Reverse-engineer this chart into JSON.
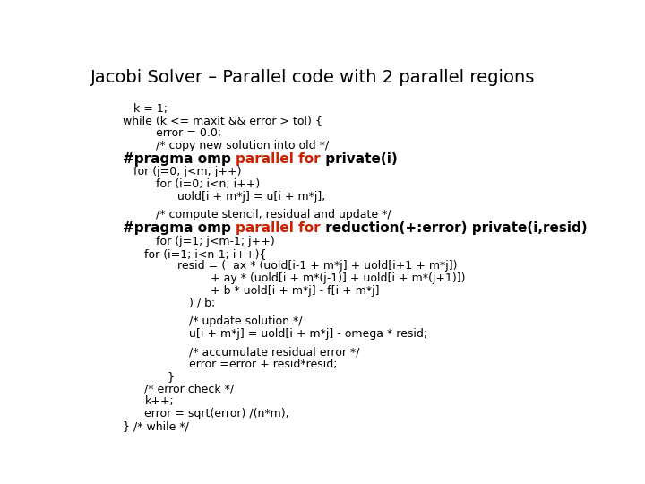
{
  "title": "Jacobi Solver – Parallel code with 2 parallel regions",
  "bg": "#ffffff",
  "title_fs": 14,
  "code_fs": 9,
  "pragma_fs": 11,
  "lines": [
    {
      "text": "k = 1;",
      "indent": 3,
      "type": "code"
    },
    {
      "text": "while (k <= maxit && error > tol) {",
      "indent": 2,
      "type": "code"
    },
    {
      "text": "error = 0.0;",
      "indent": 5,
      "type": "code"
    },
    {
      "text": "/* copy new solution into old */",
      "indent": 5,
      "type": "code"
    },
    {
      "text": "",
      "indent": 0,
      "type": "pragma1"
    },
    {
      "text": "for (j=0; j<m; j++)",
      "indent": 3,
      "type": "code"
    },
    {
      "text": "for (i=0; i<n; i++)",
      "indent": 5,
      "type": "code"
    },
    {
      "text": "uold[i + m*j] = u[i + m*j];",
      "indent": 7,
      "type": "code"
    },
    {
      "text": "",
      "indent": 0,
      "type": "blank"
    },
    {
      "text": "/* compute stencil, residual and update */",
      "indent": 5,
      "type": "code"
    },
    {
      "text": "",
      "indent": 0,
      "type": "pragma2"
    },
    {
      "text": "for (j=1; j<m-1; j++)",
      "indent": 5,
      "type": "code"
    },
    {
      "text": "for (i=1; i<n-1; i++){",
      "indent": 4,
      "type": "code"
    },
    {
      "text": "resid = (  ax * (uold[i-1 + m*j] + uold[i+1 + m*j])",
      "indent": 7,
      "type": "code"
    },
    {
      "text": "+ ay * (uold[i + m*(j-1)] + uold[i + m*(j+1)])",
      "indent": 10,
      "type": "code"
    },
    {
      "text": "+ b * uold[i + m*j] - f[i + m*j]",
      "indent": 10,
      "type": "code"
    },
    {
      "text": ") / b;",
      "indent": 8,
      "type": "code"
    },
    {
      "text": "",
      "indent": 0,
      "type": "blank"
    },
    {
      "text": "/* update solution */",
      "indent": 8,
      "type": "code"
    },
    {
      "text": "u[i + m*j] = uold[i + m*j] - omega * resid;",
      "indent": 8,
      "type": "code"
    },
    {
      "text": "",
      "indent": 0,
      "type": "blank"
    },
    {
      "text": "/* accumulate residual error */",
      "indent": 8,
      "type": "code"
    },
    {
      "text": "error =error + resid*resid;",
      "indent": 8,
      "type": "code"
    },
    {
      "text": "}",
      "indent": 6,
      "type": "code"
    },
    {
      "text": "/* error check */",
      "indent": 4,
      "type": "code"
    },
    {
      "text": "k++;",
      "indent": 4,
      "type": "code"
    },
    {
      "text": "error = sqrt(error) /(n*m);",
      "indent": 4,
      "type": "code"
    },
    {
      "text": "} /* while */",
      "indent": 2,
      "type": "code"
    }
  ],
  "pragma1_parts": [
    {
      "text": "#pragma omp ",
      "color": "#000000"
    },
    {
      "text": "parallel for",
      "color": "#cc2200"
    },
    {
      "text": " private(i)",
      "color": "#000000"
    }
  ],
  "pragma2_parts": [
    {
      "text": "#pragma omp ",
      "color": "#000000"
    },
    {
      "text": "parallel for",
      "color": "#cc2200"
    },
    {
      "text": " reduction(+:error) private(i,resid)",
      "color": "#000000"
    }
  ],
  "pragma1_indent": 2,
  "pragma2_indent": 2
}
